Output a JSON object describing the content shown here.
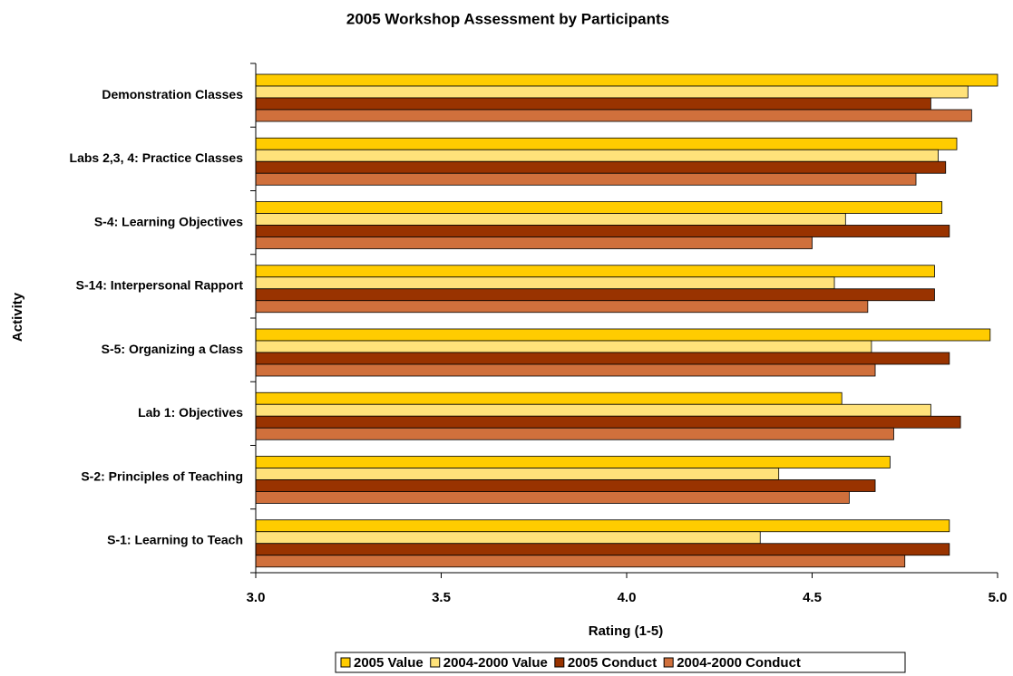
{
  "chart_data": {
    "type": "bar",
    "orientation": "horizontal",
    "title": "2005 Workshop Assessment by Participants",
    "x_label": "Rating (1-5)",
    "y_label": "Activity",
    "categories": [
      "Demonstration Classes",
      "Labs 2,3, 4: Practice Classes",
      "S-4: Learning Objectives",
      "S-14: Interpersonal Rapport",
      "S-5:  Organizing a Class",
      "Lab 1: Objectives",
      "S-2:  Principles of Teaching",
      "S-1: Learning to Teach"
    ],
    "series": [
      {
        "name": "2005 Value",
        "color": "#ffcc00",
        "values": [
          5.0,
          4.89,
          4.85,
          4.83,
          4.98,
          4.58,
          4.71,
          4.87
        ]
      },
      {
        "name": "2004-2000 Value",
        "color": "#ffe27a",
        "values": [
          4.92,
          4.84,
          4.59,
          4.56,
          4.66,
          4.82,
          4.41,
          4.36
        ]
      },
      {
        "name": "2005 Conduct",
        "color": "#993300",
        "values": [
          4.82,
          4.86,
          4.87,
          4.83,
          4.87,
          4.9,
          4.67,
          4.87
        ]
      },
      {
        "name": "2004-2000 Conduct",
        "color": "#d0703c",
        "values": [
          4.93,
          4.78,
          4.5,
          4.65,
          4.67,
          4.72,
          4.6,
          4.75
        ]
      }
    ],
    "xlim": [
      3.0,
      5.0
    ],
    "xticks": [
      {
        "value": 3.0,
        "label": "3.0"
      },
      {
        "value": 3.5,
        "label": "3.5"
      },
      {
        "value": 4.0,
        "label": "4.0"
      },
      {
        "value": 4.5,
        "label": "4.5"
      },
      {
        "value": 5.0,
        "label": "5.0"
      }
    ],
    "legend": "bottom"
  }
}
